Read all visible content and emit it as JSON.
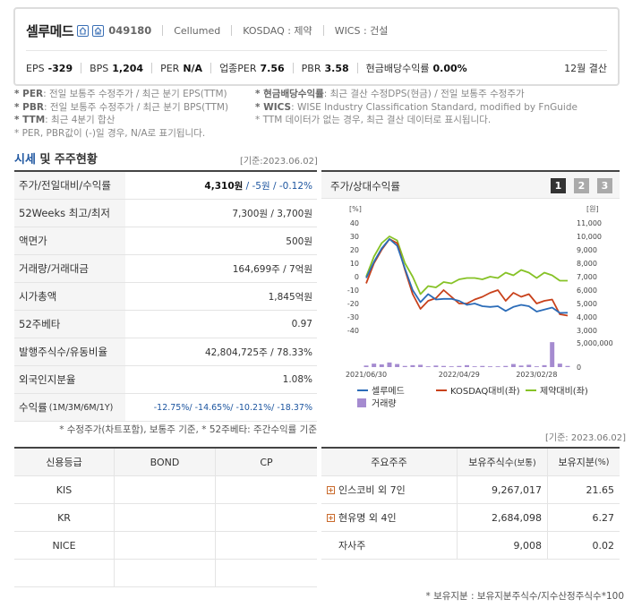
{
  "header": {
    "company_name": "셀루메드",
    "code": "049180",
    "eng_name": "Cellumed",
    "market": "KOSDAQ : 제약",
    "wics": "WICS : 건설",
    "settle": "12월 결산",
    "metrics": [
      {
        "label": "EPS",
        "value": "-329"
      },
      {
        "label": "BPS",
        "value": "1,204"
      },
      {
        "label": "PER",
        "value": "N/A"
      },
      {
        "label": "업종PER",
        "value": "7.56"
      },
      {
        "label": "PBR",
        "value": "3.58"
      },
      {
        "label": "현금배당수익률",
        "value": "0.00%"
      }
    ]
  },
  "notes": {
    "n1_key": "* PER",
    "n1_text": ": 전일 보통주 수정주가 / 최근 분기 EPS(TTM)",
    "n2_key": "* PBR",
    "n2_text": ": 전일 보통주 수정주가 / 최근 분기 BPS(TTM)",
    "n3_key": "* TTM",
    "n3_text": ": 최근 4분기 합산",
    "n4_text": "* PER, PBR값이 (-)일 경우, N/A로 표기됩니다.",
    "n5_key": "* 현금배당수익률",
    "n5_text": ": 최근 결산 수정DPS(현금) / 전일 보통주 수정주가",
    "n6_key": "* WICS",
    "n6_text": ": WISE Industry Classification Standard, modified by FnGuide",
    "n7_text": "* TTM 데이터가 없는 경우, 최근 결산 데이터로 표시됩니다."
  },
  "section": {
    "title_hl": "시세",
    "title_rest": " 및 주주현황",
    "base_date1": "[기준:2023.06.02]",
    "base_date2": "[기준: 2023.06.02]"
  },
  "quote_rows": [
    {
      "label": "주가/전일대비/수익률",
      "v1": "4,310원",
      "v2": " / -5원",
      "v3": " / -0.12%"
    },
    {
      "label": "52Weeks 최고/최저",
      "value": "7,300원 / 3,700원"
    },
    {
      "label": "액면가",
      "value": "500원"
    },
    {
      "label": "거래량/거래대금",
      "value": "164,699주 / 7억원"
    },
    {
      "label": "시가총액",
      "value": "1,845억원"
    },
    {
      "label": "52주베타",
      "value": "0.97"
    },
    {
      "label": "발행주식수/유동비율",
      "value": "42,804,725주 / 78.33%"
    },
    {
      "label": "외국인지분율",
      "value": "1.08%"
    },
    {
      "label": "수익률",
      "label_small": "(1M/3M/6M/1Y)",
      "value": "-12.75%/ -14.65%/ -10.21%/ -18.37%"
    }
  ],
  "footnote1": "* 수정주가(차트포함), 보통주 기준, * 52주베타: 주간수익률 기준",
  "chart": {
    "title": "주가/상대수익률",
    "period_buttons": [
      "1",
      "2",
      "3"
    ],
    "left_unit": "[%]",
    "right_unit": "[원]",
    "left_ticks": [
      "40",
      "30",
      "20",
      "10",
      "0",
      "-10",
      "-20",
      "-30",
      "-40"
    ],
    "right_ticks": [
      "11,000",
      "10,000",
      "9,000",
      "8,000",
      "7,000",
      "6,000",
      "5,000",
      "4,000",
      "3,000"
    ],
    "vol_ticks": [
      "5,000,000",
      "0"
    ],
    "x_ticks": [
      "2021/06/30",
      "2022/04/29",
      "2023/02/28"
    ],
    "legend": [
      {
        "name": "셀루메드",
        "color": "#2b6cb8"
      },
      {
        "name": "KOSDAQ대비(좌)",
        "color": "#c8411b"
      },
      {
        "name": "제약대비(좌)",
        "color": "#86c226"
      },
      {
        "name": "거래량",
        "color": "#a58bd0"
      }
    ]
  },
  "chart_data": {
    "type": "line",
    "x_labels": [
      "2021/06/30",
      "2022/04/29",
      "2023/02/28"
    ],
    "series": [
      {
        "name": "셀루메드",
        "axis": "right",
        "values": [
          6900,
          8100,
          9100,
          9800,
          9300,
          7600,
          6000,
          5100,
          5700,
          5300,
          5350,
          5350,
          5200,
          4900,
          5000,
          4800,
          4750,
          4800,
          4450,
          4750,
          4900,
          4800,
          4400,
          4550,
          4700,
          4300,
          4310
        ]
      },
      {
        "name": "KOSDAQ대비(좌)",
        "axis": "left",
        "values": [
          -5,
          10,
          20,
          28,
          25,
          5,
          -13,
          -24,
          -18,
          -16,
          -10,
          -15,
          -20,
          -20,
          -17,
          -15,
          -12,
          -10,
          -18,
          -12,
          -15,
          -13,
          -20,
          -18,
          -17,
          -28,
          -29
        ]
      },
      {
        "name": "제약대비(좌)",
        "axis": "left",
        "values": [
          0,
          15,
          25,
          30,
          27,
          10,
          0,
          -13,
          -7,
          -8,
          -4,
          -5,
          -2,
          -1,
          -1,
          -2,
          0,
          -1,
          3,
          1,
          5,
          3,
          -1,
          3,
          1,
          -3,
          -3
        ]
      },
      {
        "name": "거래량",
        "axis": "volume",
        "values": [
          400000,
          900000,
          700000,
          1200000,
          800000,
          300000,
          500000,
          600000,
          200000,
          400000,
          300000,
          200000,
          300000,
          500000,
          200000,
          300000,
          200000,
          200000,
          300000,
          800000,
          400000,
          600000,
          200000,
          500000,
          6500000,
          900000,
          300000
        ]
      }
    ],
    "left_range": [
      -40,
      40
    ],
    "right_range": [
      3000,
      11000
    ],
    "volume_range": [
      0,
      7000000
    ],
    "grid": false,
    "legend_position": "bottom"
  },
  "credit_table": {
    "headers": [
      "신용등급",
      "BOND",
      "CP"
    ],
    "rows": [
      [
        "KIS",
        "",
        ""
      ],
      [
        "KR",
        "",
        ""
      ],
      [
        "NICE",
        "",
        ""
      ],
      [
        "",
        "",
        ""
      ]
    ]
  },
  "holder_table": {
    "header_holder": "주요주주",
    "header_shares": "보유주식수",
    "header_shares_unit": "(보통)",
    "header_ratio": "보유지분",
    "header_ratio_unit": "(%)",
    "rows": [
      {
        "name": "인스코비 외 7인",
        "shares": "9,267,017",
        "ratio": "21.65",
        "expand": true
      },
      {
        "name": "현유명 외 4인",
        "shares": "2,684,098",
        "ratio": "6.27",
        "expand": true
      },
      {
        "name": "자사주",
        "shares": "9,008",
        "ratio": "0.02",
        "expand": false
      }
    ]
  },
  "footnote2": "* 보유지분 : 보유지분주식수/지수산정주식수*100"
}
